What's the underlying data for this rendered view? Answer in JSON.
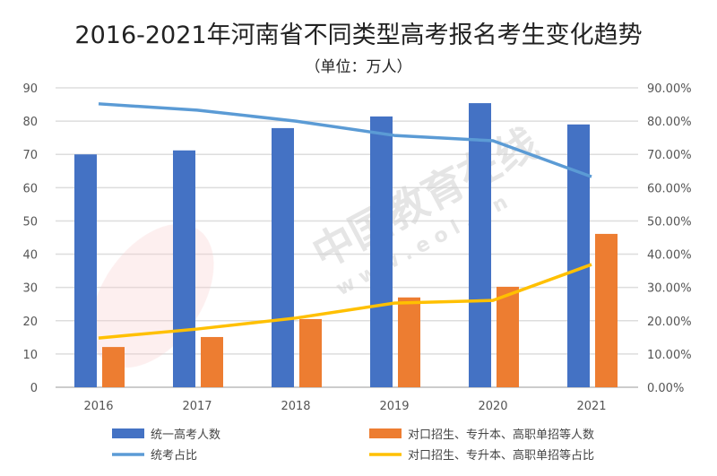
{
  "chart_data": {
    "type": "bar",
    "title": "2016-2021年河南省不同类型高考报名考生变化趋势",
    "subtitle": "（单位：万人）",
    "categories": [
      "2016",
      "2017",
      "2018",
      "2019",
      "2020",
      "2021"
    ],
    "ylim": [
      0,
      90
    ],
    "y_ticks": [
      "0",
      "10",
      "20",
      "30",
      "40",
      "50",
      "60",
      "70",
      "80",
      "90"
    ],
    "y2lim": [
      0,
      90
    ],
    "y2_ticks": [
      "0.00%",
      "10.00%",
      "20.00%",
      "30.00%",
      "40.00%",
      "50.00%",
      "60.00%",
      "70.00%",
      "80.00%",
      "90.00%"
    ],
    "grid": true,
    "legend_placement": "bottom",
    "series": [
      {
        "name": "统一高考人数",
        "type": "bar",
        "axis": "left",
        "color": "#4472C4",
        "values": [
          70,
          71.2,
          77.9,
          81.4,
          85.4,
          79
        ]
      },
      {
        "name": "对口招生、专升本、高职单招等人数",
        "type": "bar",
        "axis": "left",
        "color": "#ED7D31",
        "values": [
          12.1,
          15.1,
          20.5,
          27,
          30.2,
          46.1
        ]
      },
      {
        "name": "统考占比",
        "type": "line",
        "axis": "right",
        "unit": "%",
        "color": "#5B9BD5",
        "values": [
          85.2,
          83.3,
          80,
          75.7,
          74.1,
          63.3
        ]
      },
      {
        "name": "对口招生、专升本、高职单招等占比",
        "type": "line",
        "axis": "right",
        "unit": "%",
        "color": "#FFC000",
        "values": [
          14.8,
          17.5,
          20.8,
          25.3,
          26.1,
          36.9
        ]
      }
    ]
  },
  "watermark": {
    "text": "中国教育在线",
    "url": "w w w . e o l . c n",
    "logo": "eol"
  }
}
